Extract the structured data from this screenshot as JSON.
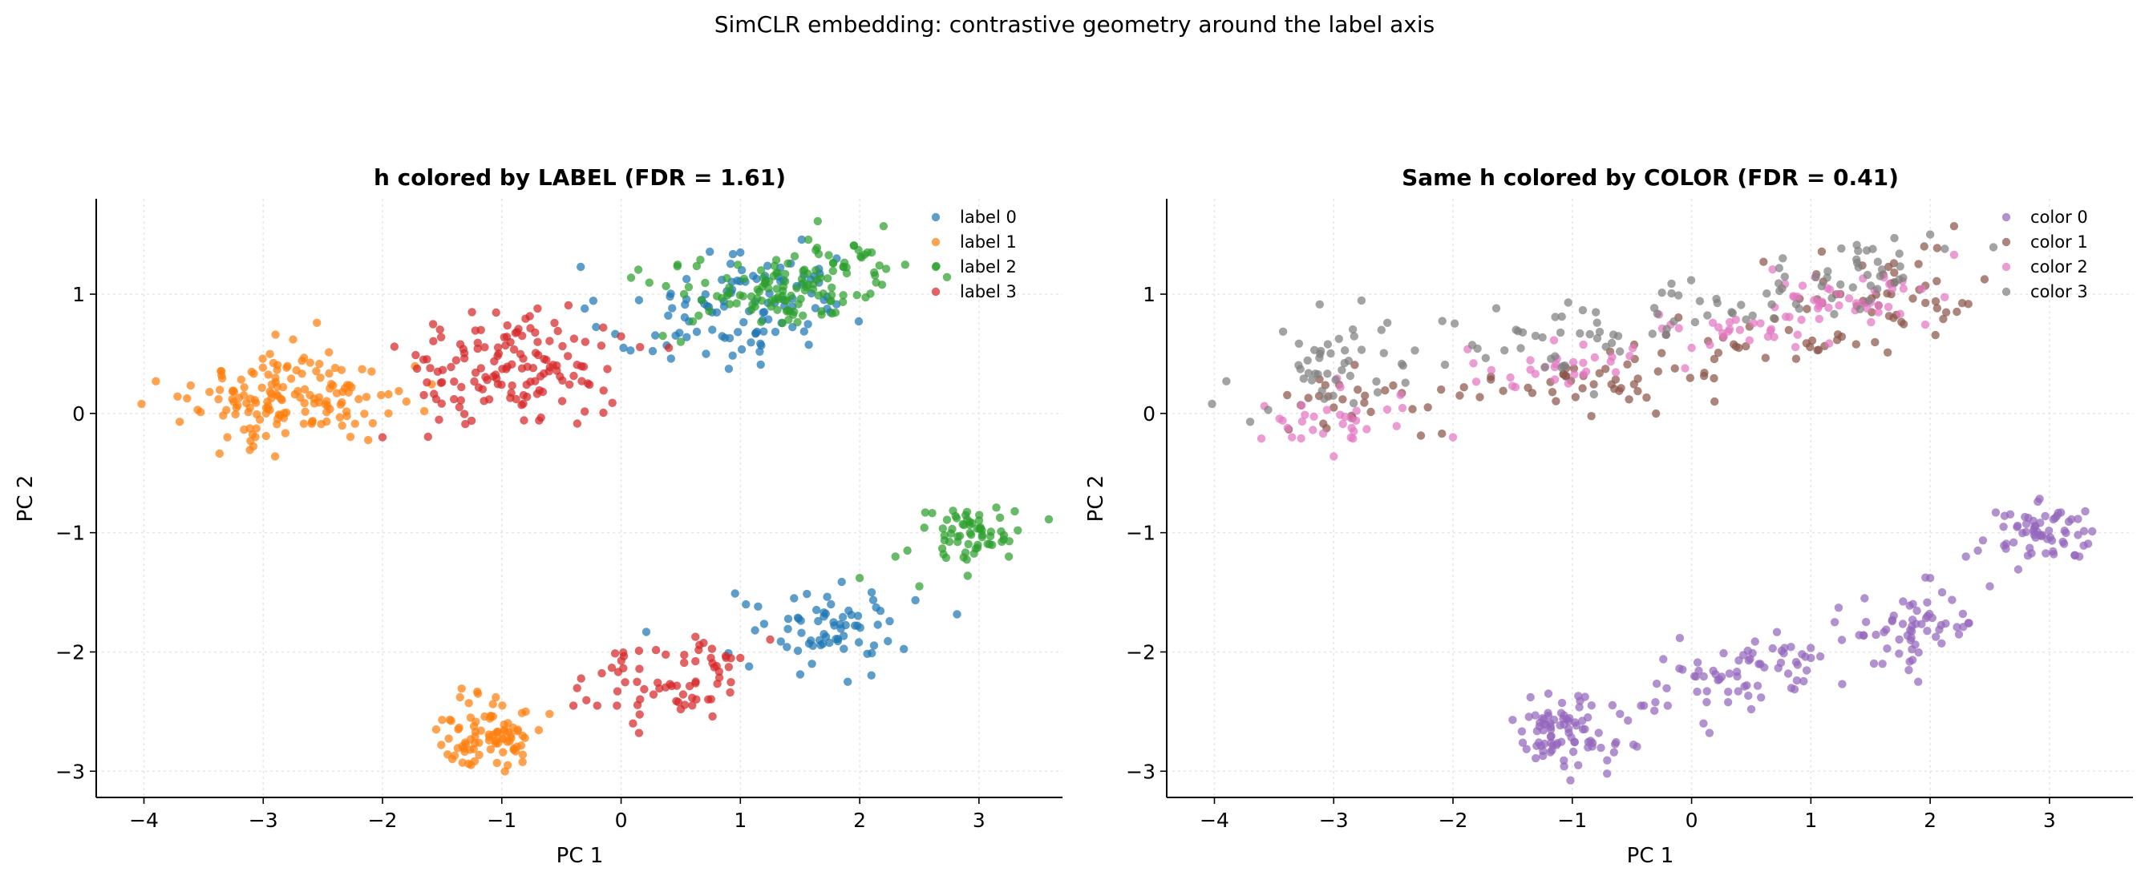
{
  "figure": {
    "suptitle": "SimCLR embedding: contrastive geometry around the label axis"
  },
  "chart_data": [
    {
      "type": "scatter",
      "title": "h colored by LABEL  (FDR = 1.61)",
      "xlabel": "PC 1",
      "ylabel": "PC 2",
      "xlim": [
        -4.4,
        3.7
      ],
      "ylim": [
        -3.22,
        1.8
      ],
      "xticks": [
        -4,
        -3,
        -2,
        -1,
        0,
        1,
        2,
        3
      ],
      "yticks": [
        -3,
        -2,
        -1,
        0,
        1
      ],
      "xtick_labels": [
        "−4",
        "−3",
        "−2",
        "−1",
        "0",
        "1",
        "2",
        "3"
      ],
      "ytick_labels": [
        "−3",
        "−2",
        "−1",
        "0",
        "1"
      ],
      "grid": true,
      "legend_position": "top-right",
      "series": [
        {
          "name": "label 0",
          "color": "#1f77b4",
          "clusters": [
            {
              "center": [
                0.75,
                0.8
              ],
              "std": [
                0.45,
                0.22
              ],
              "count": 70
            },
            {
              "center": [
                1.35,
                1.1
              ],
              "std": [
                0.35,
                0.18
              ],
              "count": 40
            },
            {
              "center": [
                1.85,
                -1.8
              ],
              "std": [
                0.3,
                0.15
              ],
              "count": 55
            },
            {
              "center": [
                1.2,
                -1.75
              ],
              "std": [
                0.35,
                0.2
              ],
              "count": 12
            }
          ],
          "points": [
            [
              0.02,
              0.55
            ],
            [
              0.15,
              0.95
            ],
            [
              1.0,
              1.35
            ],
            [
              2.1,
              -1.5
            ],
            [
              1.6,
              -2.1
            ],
            [
              1.9,
              -2.25
            ],
            [
              1.45,
              -1.55
            ]
          ]
        },
        {
          "name": "label 1",
          "color": "#ff7f0e",
          "clusters": [
            {
              "center": [
                -2.85,
                0.12
              ],
              "std": [
                0.35,
                0.2
              ],
              "count": 110
            },
            {
              "center": [
                -2.35,
                0.18
              ],
              "std": [
                0.3,
                0.2
              ],
              "count": 35
            },
            {
              "center": [
                -1.1,
                -2.7
              ],
              "std": [
                0.22,
                0.14
              ],
              "count": 80
            }
          ],
          "points": [
            [
              -4.02,
              0.08
            ],
            [
              -3.9,
              0.27
            ],
            [
              -3.7,
              -0.07
            ],
            [
              -3.55,
              0.03
            ],
            [
              -3.45,
              0.18
            ],
            [
              -3.35,
              0.32
            ],
            [
              -2.55,
              0.76
            ],
            [
              -2.75,
              0.62
            ],
            [
              -3.3,
              -0.2
            ],
            [
              -2.9,
              -0.36
            ],
            [
              -1.95,
              0.0
            ],
            [
              -1.8,
              0.1
            ],
            [
              -1.65,
              0.02
            ],
            [
              -1.35,
              -2.38
            ],
            [
              -1.2,
              -2.35
            ],
            [
              -0.95,
              -2.95
            ],
            [
              -1.05,
              -2.38
            ],
            [
              -0.8,
              -2.5
            ],
            [
              -0.6,
              -2.52
            ],
            [
              -0.9,
              -2.82
            ],
            [
              -1.5,
              -2.57
            ],
            [
              -1.55,
              -2.65
            ]
          ]
        },
        {
          "name": "label 2",
          "color": "#2ca02c",
          "clusters": [
            {
              "center": [
                1.3,
                1.0
              ],
              "std": [
                0.45,
                0.13
              ],
              "count": 95
            },
            {
              "center": [
                1.85,
                1.25
              ],
              "std": [
                0.3,
                0.12
              ],
              "count": 40
            },
            {
              "center": [
                2.95,
                -1.0
              ],
              "std": [
                0.22,
                0.11
              ],
              "count": 60
            }
          ],
          "points": [
            [
              2.2,
              1.57
            ],
            [
              2.1,
              1.35
            ],
            [
              0.5,
              0.6
            ],
            [
              0.35,
              0.65
            ],
            [
              0.65,
              0.82
            ],
            [
              2.55,
              -0.83
            ],
            [
              2.5,
              -1.45
            ],
            [
              2.4,
              -1.15
            ],
            [
              2.3,
              -1.2
            ],
            [
              2.0,
              -1.38
            ],
            [
              3.3,
              -0.82
            ],
            [
              3.25,
              -1.2
            ]
          ]
        },
        {
          "name": "label 3",
          "color": "#d62728",
          "clusters": [
            {
              "center": [
                -1.0,
                0.35
              ],
              "std": [
                0.4,
                0.22
              ],
              "count": 110
            },
            {
              "center": [
                -0.55,
                0.5
              ],
              "std": [
                0.25,
                0.2
              ],
              "count": 25
            },
            {
              "center": [
                0.35,
                -2.25
              ],
              "std": [
                0.35,
                0.15
              ],
              "count": 50
            },
            {
              "center": [
                0.8,
                -2.0
              ],
              "std": [
                0.2,
                0.1
              ],
              "count": 15
            }
          ],
          "points": [
            [
              -2.0,
              -0.2
            ],
            [
              -1.9,
              0.56
            ],
            [
              -1.6,
              0.38
            ],
            [
              -1.55,
              0.12
            ],
            [
              -0.3,
              0.6
            ],
            [
              -0.15,
              0.72
            ],
            [
              0.4,
              0.55
            ],
            [
              -0.7,
              0.88
            ],
            [
              -1.25,
              0.85
            ],
            [
              -0.4,
              -2.45
            ],
            [
              -0.2,
              -2.45
            ],
            [
              0.1,
              -2.6
            ],
            [
              0.15,
              -2.68
            ],
            [
              0.5,
              -2.48
            ],
            [
              1.0,
              -2.05
            ]
          ]
        }
      ]
    },
    {
      "type": "scatter",
      "title": "Same h colored by COLOR  (FDR = 0.41)",
      "xlabel": "PC 1",
      "ylabel": "PC 2",
      "xlim": [
        -4.4,
        3.7
      ],
      "ylim": [
        -3.22,
        1.8
      ],
      "xticks": [
        -4,
        -3,
        -2,
        -1,
        0,
        1,
        2,
        3
      ],
      "yticks": [
        -3,
        -2,
        -1,
        0,
        1
      ],
      "xtick_labels": [
        "−4",
        "−3",
        "−2",
        "−1",
        "0",
        "1",
        "2",
        "3"
      ],
      "ytick_labels": [
        "−3",
        "−2",
        "−1",
        "0",
        "1"
      ],
      "grid": true,
      "legend_position": "top-right",
      "series": [
        {
          "name": "color 0",
          "color": "#9467bd",
          "clusters": [
            {
              "center": [
                2.95,
                -1.0
              ],
              "std": [
                0.22,
                0.11
              ],
              "count": 60
            },
            {
              "center": [
                1.85,
                -1.8
              ],
              "std": [
                0.3,
                0.15
              ],
              "count": 55
            },
            {
              "center": [
                0.35,
                -2.25
              ],
              "std": [
                0.35,
                0.15
              ],
              "count": 50
            },
            {
              "center": [
                0.8,
                -2.0
              ],
              "std": [
                0.2,
                0.1
              ],
              "count": 15
            },
            {
              "center": [
                -1.1,
                -2.7
              ],
              "std": [
                0.22,
                0.14
              ],
              "count": 80
            }
          ],
          "points": [
            [
              2.55,
              -0.83
            ],
            [
              2.5,
              -1.45
            ],
            [
              2.4,
              -1.15
            ],
            [
              2.3,
              -1.2
            ],
            [
              2.0,
              -1.38
            ],
            [
              3.3,
              -0.82
            ],
            [
              3.25,
              -1.2
            ],
            [
              2.1,
              -1.5
            ],
            [
              1.6,
              -2.1
            ],
            [
              1.9,
              -2.25
            ],
            [
              1.45,
              -1.55
            ],
            [
              1.2,
              -1.75
            ],
            [
              1.0,
              -2.05
            ],
            [
              -0.4,
              -2.45
            ],
            [
              -0.2,
              -2.45
            ],
            [
              0.1,
              -2.6
            ],
            [
              0.15,
              -2.68
            ],
            [
              0.5,
              -2.48
            ],
            [
              -1.35,
              -2.38
            ],
            [
              -1.2,
              -2.35
            ],
            [
              -0.95,
              -2.95
            ],
            [
              -0.6,
              -2.52
            ],
            [
              -1.5,
              -2.57
            ]
          ]
        },
        {
          "name": "color 1",
          "color": "#8c564b",
          "clusters": [
            {
              "center": [
                -2.5,
                0.14
              ],
              "std": [
                0.4,
                0.12
              ],
              "count": 28
            },
            {
              "center": [
                -0.8,
                0.25
              ],
              "std": [
                0.5,
                0.12
              ],
              "count": 45
            },
            {
              "center": [
                0.6,
                0.6
              ],
              "std": [
                0.5,
                0.1
              ],
              "count": 25
            },
            {
              "center": [
                1.6,
                1.0
              ],
              "std": [
                0.45,
                0.16
              ],
              "count": 50
            }
          ],
          "points": [
            [
              2.2,
              1.57
            ],
            [
              1.95,
              1.4
            ],
            [
              -3.0,
              0.05
            ],
            [
              -2.1,
              0.2
            ]
          ]
        },
        {
          "name": "color 2",
          "color": "#e377c2",
          "clusters": [
            {
              "center": [
                -2.9,
                -0.02
              ],
              "std": [
                0.35,
                0.12
              ],
              "count": 30
            },
            {
              "center": [
                -1.1,
                0.38
              ],
              "std": [
                0.4,
                0.1
              ],
              "count": 30
            },
            {
              "center": [
                0.3,
                0.7
              ],
              "std": [
                0.4,
                0.08
              ],
              "count": 22
            },
            {
              "center": [
                1.35,
                0.95
              ],
              "std": [
                0.4,
                0.12
              ],
              "count": 45
            }
          ],
          "points": [
            [
              -3.35,
              -0.2
            ],
            [
              -2.0,
              -0.2
            ],
            [
              -3.0,
              -0.36
            ],
            [
              0.0,
              0.55
            ],
            [
              2.2,
              1.33
            ]
          ]
        },
        {
          "name": "color 3",
          "color": "#7f7f7f",
          "clusters": [
            {
              "center": [
                -3.0,
                0.35
              ],
              "std": [
                0.35,
                0.18
              ],
              "count": 40
            },
            {
              "center": [
                -1.1,
                0.62
              ],
              "std": [
                0.5,
                0.15
              ],
              "count": 40
            },
            {
              "center": [
                0.3,
                0.92
              ],
              "std": [
                0.45,
                0.12
              ],
              "count": 25
            },
            {
              "center": [
                1.45,
                1.22
              ],
              "std": [
                0.45,
                0.12
              ],
              "count": 35
            }
          ],
          "points": [
            [
              -4.02,
              0.08
            ],
            [
              -3.9,
              0.27
            ],
            [
              -3.7,
              -0.07
            ],
            [
              -3.55,
              0.03
            ],
            [
              -2.55,
              0.76
            ],
            [
              -2.6,
              0.7
            ],
            [
              2.0,
              1.5
            ],
            [
              1.7,
              1.47
            ]
          ]
        }
      ]
    }
  ]
}
